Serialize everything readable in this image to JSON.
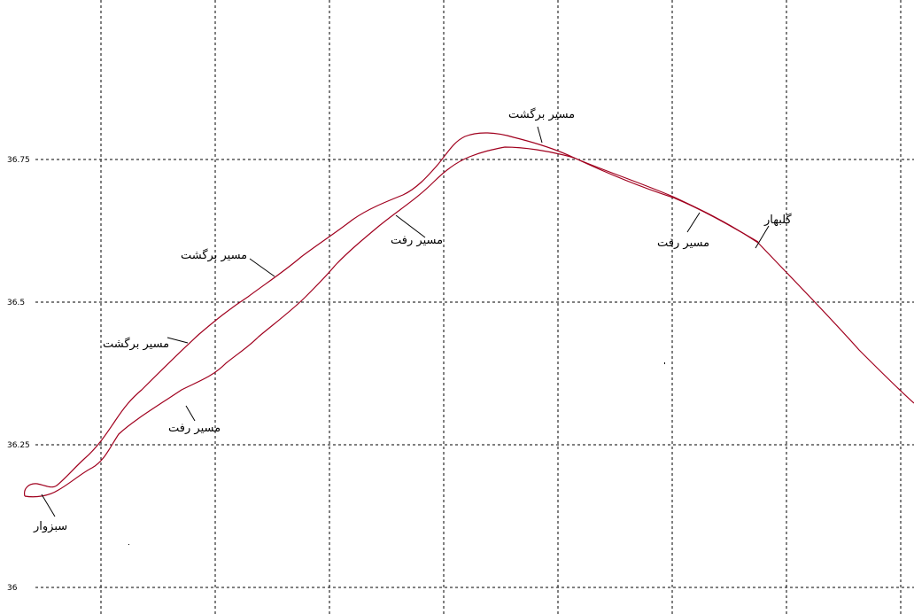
{
  "map": {
    "y_axis": {
      "tick_labels": [
        "36.75",
        "36.5",
        "36.25",
        "36"
      ]
    },
    "routes": [
      {
        "name": "مسیر رفت",
        "color": "#a0001e"
      },
      {
        "name": "مسیر برگشت",
        "color": "#a0001e"
      }
    ],
    "places": {
      "start": "سبزوار",
      "end": "گلبهار"
    },
    "labels": {
      "outbound_1": "مسیر رفت",
      "outbound_2": "مسیر رفت",
      "outbound_3": "مسیر رفت",
      "return_1": "مسیر برگشت",
      "return_2": "مسیر برگشت",
      "return_3": "مسیر برگشت"
    }
  }
}
